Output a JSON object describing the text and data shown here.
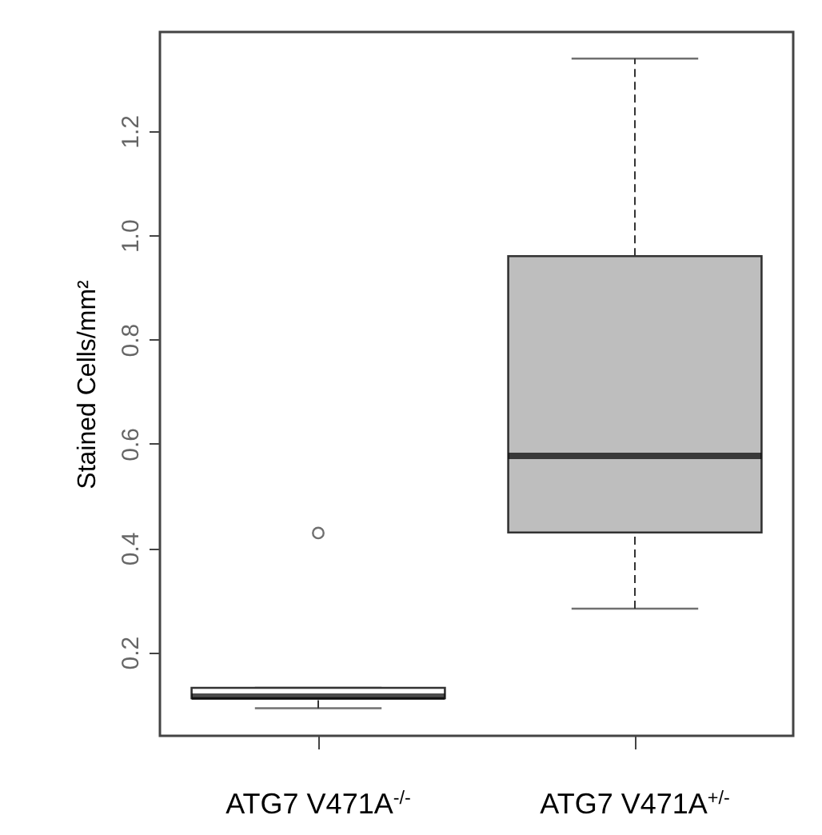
{
  "chart_data": {
    "type": "box",
    "ylabel": "Stained Cells/mm²",
    "categories": [
      "ATG7 V471A$^{-/-}$",
      "ATG7 V471A$^{+/-}$"
    ],
    "boxes": [
      {
        "low": 0.093,
        "q1": 0.112,
        "median": 0.115,
        "q3": 0.132,
        "high": 0.132,
        "outliers": [
          0.429
        ]
      },
      {
        "low": 0.284,
        "q1": 0.43,
        "median": 0.577,
        "q3": 0.96,
        "high": 1.339
      }
    ],
    "colors": [
      "#ffffff",
      "#bebebe"
    ],
    "ylim": [
      0.04,
      1.39
    ],
    "yticks": [
      0.2,
      0.4,
      0.6,
      0.8,
      {
        "value": 1,
        "label": "1.0"
      },
      1.2
    ],
    "marker": "circle",
    "line_style": "dashed",
    "grid": false
  }
}
